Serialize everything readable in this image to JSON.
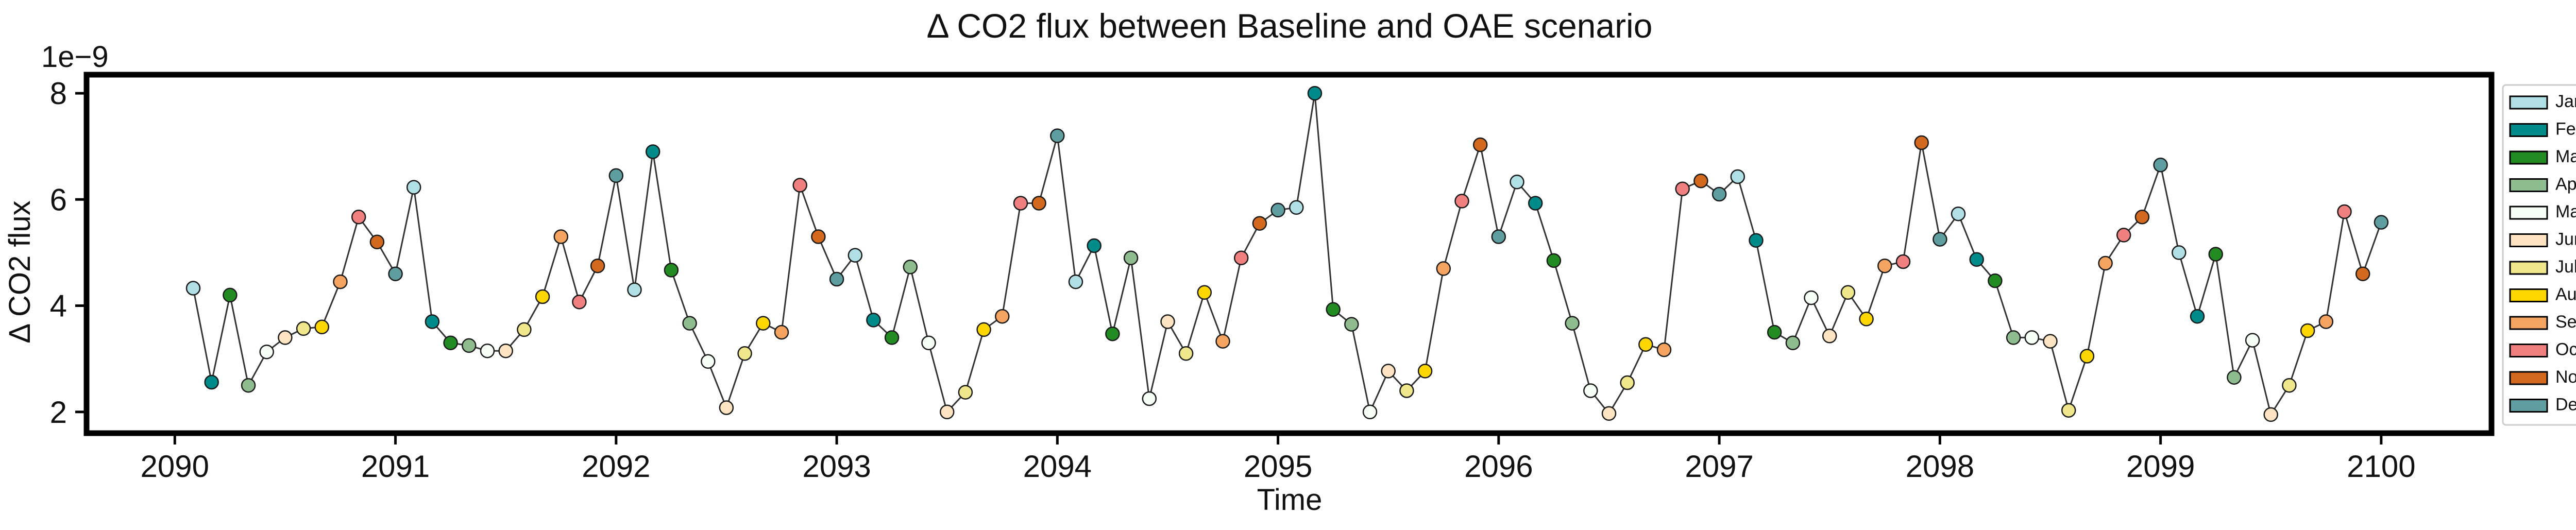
{
  "chart_data": {
    "type": "line",
    "title": "Δ CO2 flux between Baseline and OAE scenario",
    "xlabel": "Time",
    "ylabel": "Δ CO2 flux",
    "y_scale_label": "1e−9",
    "xlim": [
      2089.6,
      2100.5
    ],
    "ylim": [
      1.6,
      8.35
    ],
    "x_ticks": [
      2090,
      2091,
      2092,
      2093,
      2094,
      2095,
      2096,
      2097,
      2098,
      2099,
      2100
    ],
    "y_ticks": [
      2,
      4,
      6,
      8
    ],
    "grid": false,
    "legend_position": "right",
    "line_color": "#333333",
    "months": [
      {
        "name": "Jan",
        "color": "#b0e0e6"
      },
      {
        "name": "Feb",
        "color": "#008b8b"
      },
      {
        "name": "Mar",
        "color": "#228b22"
      },
      {
        "name": "Apr",
        "color": "#8fbc8f"
      },
      {
        "name": "May",
        "color": "#f5fff5"
      },
      {
        "name": "June",
        "color": "#ffe4c4"
      },
      {
        "name": "July",
        "color": "#f0e68c"
      },
      {
        "name": "Aug",
        "color": "#ffd700"
      },
      {
        "name": "Sept",
        "color": "#f4a460"
      },
      {
        "name": "Oct",
        "color": "#f08080"
      },
      {
        "name": "Nov",
        "color": "#d2691e"
      },
      {
        "name": "Dec",
        "color": "#5f9ea0"
      }
    ],
    "start_year": 2090,
    "values": [
      4.33,
      2.56,
      4.2,
      2.5,
      3.13,
      3.4,
      3.57,
      3.6,
      4.45,
      5.67,
      5.2,
      4.6,
      6.23,
      3.7,
      3.3,
      3.25,
      3.15,
      3.15,
      3.55,
      4.17,
      5.3,
      4.07,
      4.75,
      6.45,
      4.3,
      6.9,
      4.67,
      3.67,
      2.95,
      2.08,
      3.1,
      3.67,
      3.5,
      6.27,
      5.3,
      4.5,
      4.95,
      3.73,
      3.4,
      4.73,
      3.3,
      2.0,
      2.37,
      3.55,
      3.8,
      5.93,
      5.93,
      7.2,
      4.45,
      5.13,
      3.47,
      4.9,
      2.25,
      3.7,
      3.1,
      4.25,
      3.33,
      4.9,
      5.55,
      5.8,
      5.85,
      8.0,
      3.93,
      3.65,
      2.0,
      2.77,
      2.4,
      2.77,
      4.7,
      5.97,
      7.03,
      5.3,
      6.33,
      5.93,
      4.85,
      3.67,
      2.4,
      1.97,
      2.55,
      3.27,
      3.17,
      6.2,
      6.35,
      6.1,
      6.43,
      5.23,
      3.5,
      3.3,
      4.15,
      3.43,
      4.25,
      3.75,
      4.75,
      4.83,
      7.07,
      5.25,
      5.73,
      4.87,
      4.47,
      3.4,
      3.4,
      3.33,
      2.03,
      3.05,
      4.8,
      5.33,
      5.67,
      6.65,
      5.0,
      3.8,
      4.97,
      2.65,
      3.35,
      1.95,
      2.5,
      3.53,
      3.7,
      5.77,
      4.6,
      5.57
    ]
  }
}
